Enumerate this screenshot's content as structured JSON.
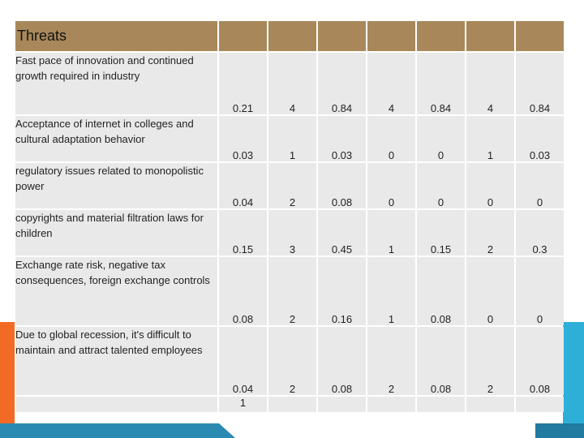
{
  "header": {
    "title": "Threats"
  },
  "rows": [
    {
      "label": "Fast pace of innovation and continued growth required in industry",
      "values": [
        "0.21",
        "4",
        "0.84",
        "4",
        "0.84",
        "4",
        "0.84"
      ]
    },
    {
      "label": "Acceptance of internet in colleges and cultural adaptation behavior",
      "values": [
        "0.03",
        "1",
        "0.03",
        "0",
        "0",
        "1",
        "0.03"
      ]
    },
    {
      "label": "regulatory issues related to monopolistic power",
      "values": [
        "0.04",
        "2",
        "0.08",
        "0",
        "0",
        "0",
        "0"
      ]
    },
    {
      "label": "copyrights and material filtration laws for children",
      "values": [
        "0.15",
        "3",
        "0.45",
        "1",
        "0.15",
        "2",
        "0.3"
      ]
    },
    {
      "label": "Exchange rate risk, negative tax consequences, foreign exchange controls",
      "values": [
        "0.08",
        "2",
        "0.16",
        "1",
        "0.08",
        "0",
        "0"
      ]
    },
    {
      "label": "Due to global recession, it's difficult to maintain and attract talented employees",
      "values": [
        "0.04",
        "2",
        "0.08",
        "2",
        "0.08",
        "2",
        "0.08"
      ]
    }
  ],
  "total": {
    "weight_sum": "1"
  },
  "colors": {
    "header_bg": "#a8885a",
    "cell_bg": "#e9e9e9",
    "accent_orange": "#f26a24",
    "accent_blue": "#2eafd8"
  }
}
